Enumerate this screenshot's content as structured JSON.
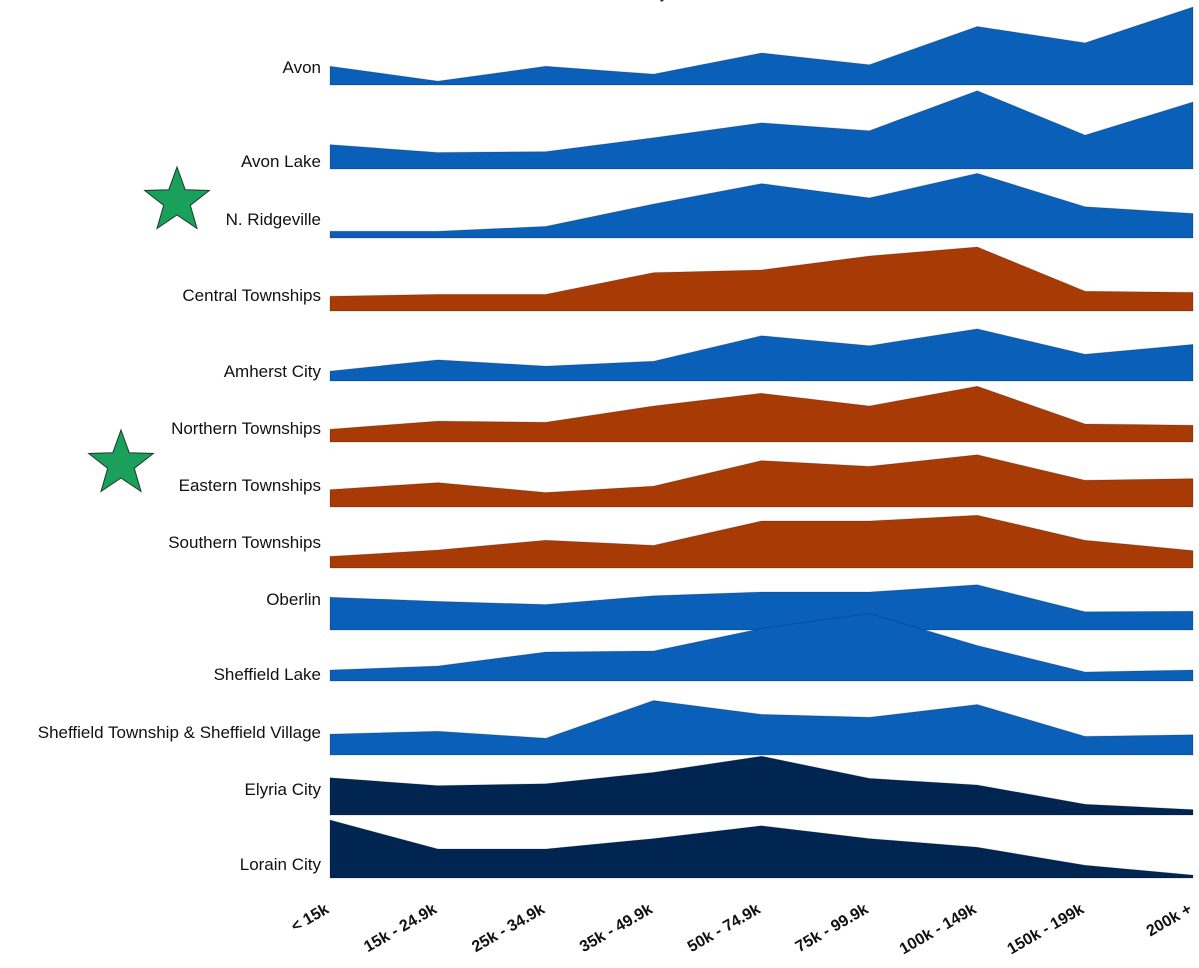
{
  "chart_data": {
    "type": "area",
    "title": "y",
    "xlabel": "",
    "ylabel": "",
    "categories": [
      "< 15k",
      "15k - 24.9k",
      "25k - 34.9k",
      "35k - 49.9k",
      "50k - 74.9k",
      "75k - 99.9k",
      "100k - 149k",
      "150k - 199k",
      "200k +"
    ],
    "grid": false,
    "legend": "none",
    "series": [
      {
        "name": "Avon",
        "color": "#0a5fb8",
        "starred": false,
        "values": [
          0.24,
          0.05,
          0.24,
          0.14,
          0.41,
          0.26,
          0.75,
          0.54,
          1.0
        ]
      },
      {
        "name": "Avon Lake",
        "color": "#0a5fb8",
        "starred": false,
        "values": [
          0.28,
          0.19,
          0.2,
          0.36,
          0.53,
          0.44,
          0.9,
          0.39,
          0.77
        ]
      },
      {
        "name": "N. Ridgeville",
        "color": "#0a5fb8",
        "starred": true,
        "values": [
          0.1,
          0.1,
          0.17,
          0.5,
          0.8,
          0.59,
          0.95,
          0.46,
          0.36
        ]
      },
      {
        "name": "Central Townships",
        "color": "#a83a05",
        "starred": false,
        "values": [
          0.23,
          0.26,
          0.26,
          0.6,
          0.64,
          0.86,
          1.0,
          0.31,
          0.29
        ]
      },
      {
        "name": "Amherst City",
        "color": "#0a5fb8",
        "starred": false,
        "values": [
          0.16,
          0.34,
          0.24,
          0.32,
          0.73,
          0.57,
          0.84,
          0.43,
          0.59
        ]
      },
      {
        "name": "Northern Townships",
        "color": "#a83a05",
        "starred": false,
        "values": [
          0.22,
          0.36,
          0.34,
          0.62,
          0.84,
          0.62,
          0.96,
          0.31,
          0.29
        ]
      },
      {
        "name": "Eastern Townships",
        "color": "#a83a05",
        "starred": true,
        "values": [
          0.3,
          0.42,
          0.25,
          0.36,
          0.8,
          0.7,
          0.9,
          0.46,
          0.49
        ]
      },
      {
        "name": "Southern Townships",
        "color": "#a83a05",
        "starred": false,
        "values": [
          0.2,
          0.31,
          0.48,
          0.39,
          0.81,
          0.81,
          0.91,
          0.48,
          0.3
        ]
      },
      {
        "name": "Oberlin",
        "color": "#0a5fb8",
        "starred": false,
        "values": [
          0.63,
          0.55,
          0.49,
          0.66,
          0.73,
          0.73,
          0.87,
          0.35,
          0.36
        ]
      },
      {
        "name": "Sheffield Lake",
        "color": "#0a5fb8",
        "starred": false,
        "values": [
          0.22,
          0.3,
          0.58,
          0.6,
          1.05,
          1.35,
          0.71,
          0.18,
          0.22
        ]
      },
      {
        "name": "Sheffield Township & Sheffield Village",
        "color": "#0a5fb8",
        "starred": false,
        "values": [
          0.36,
          0.41,
          0.29,
          0.94,
          0.7,
          0.65,
          0.87,
          0.32,
          0.35
        ]
      },
      {
        "name": "Elyria City",
        "color": "#012551",
        "starred": false,
        "values": [
          0.62,
          0.49,
          0.52,
          0.71,
          0.98,
          0.61,
          0.5,
          0.18,
          0.09
        ]
      },
      {
        "name": "Lorain City",
        "color": "#012551",
        "starred": false,
        "values": [
          1.0,
          0.5,
          0.5,
          0.68,
          0.9,
          0.68,
          0.53,
          0.22,
          0.05
        ]
      }
    ]
  },
  "colors": {
    "star": "#1aa05a",
    "star_outline": "#1b3a2a",
    "label_text": "#111111"
  },
  "icons": {
    "marker": "star-icon"
  }
}
